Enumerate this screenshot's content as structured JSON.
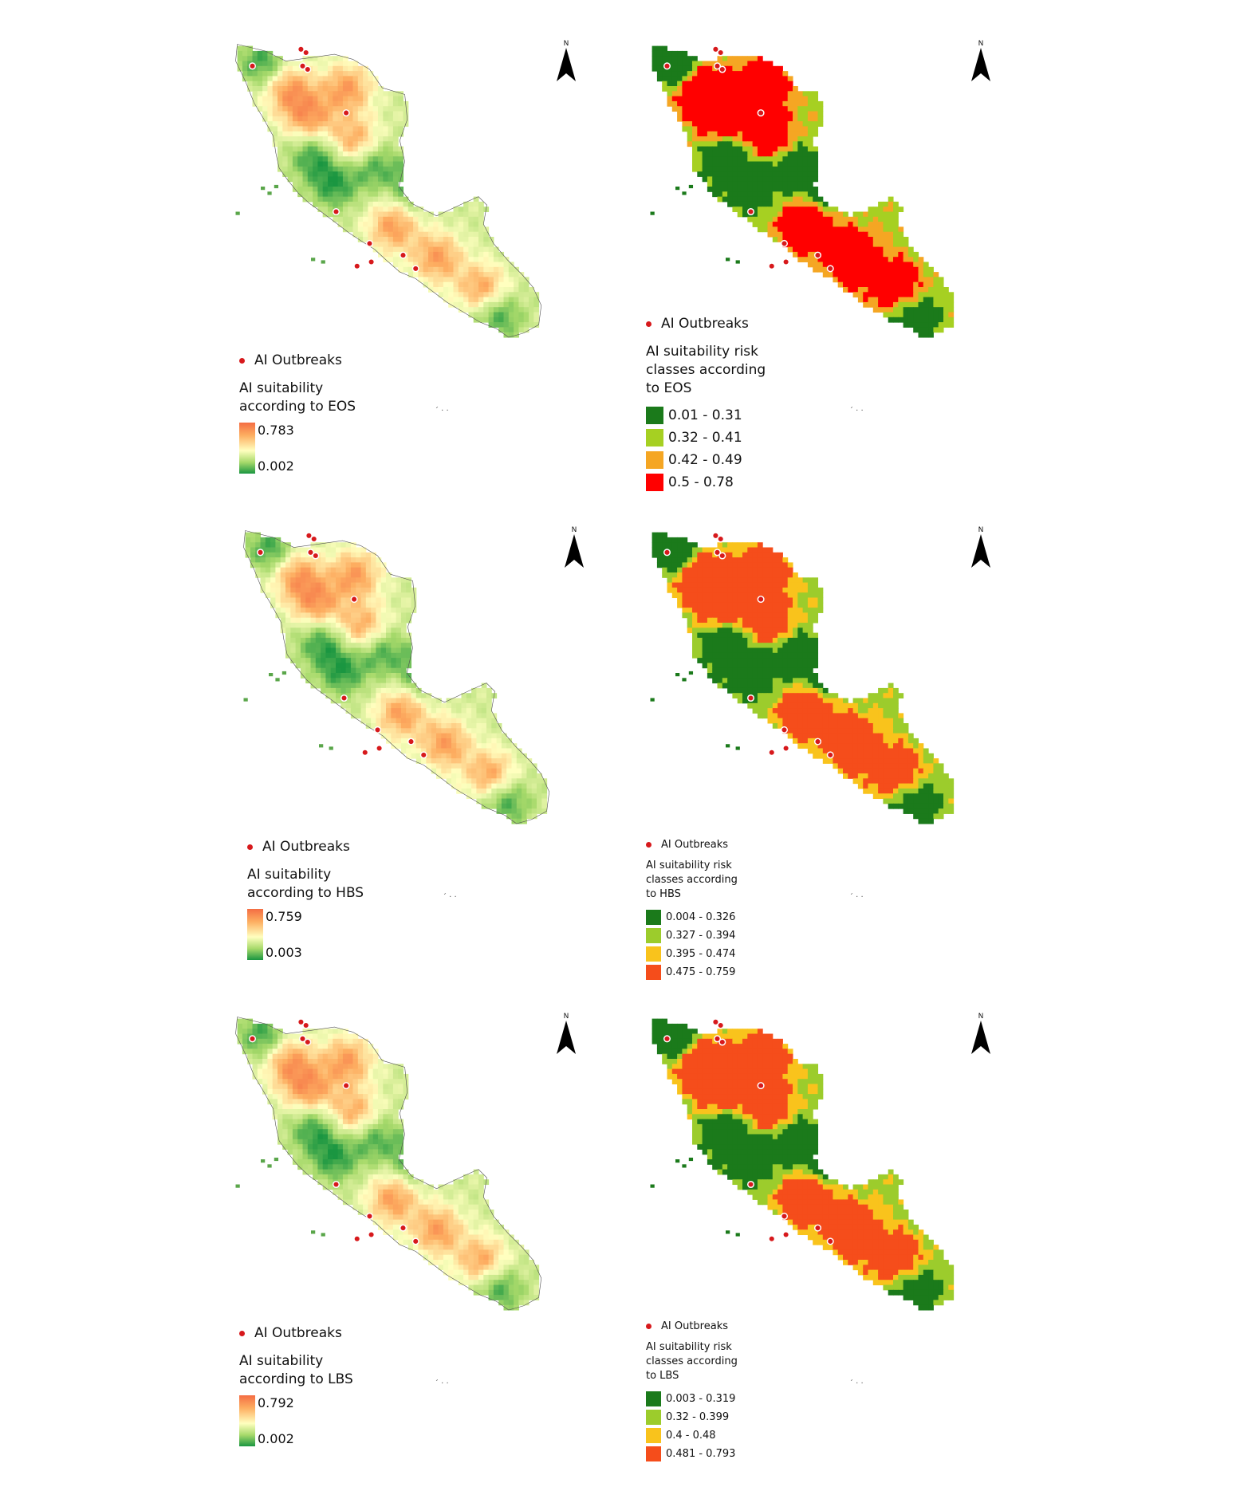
{
  "outbreaks_label": "AI Outbreaks",
  "north_label": "N",
  "palette": {
    "class_colors": [
      "#1b7a1b",
      "#a6d022",
      "#f5a623",
      "#ff0000"
    ],
    "class_colors_alt": [
      "#1b7a1b",
      "#9ccc2c",
      "#f9c31c",
      "#f54d1b"
    ],
    "continuous_ramp": [
      "#1a9641",
      "#a6d96a",
      "#ffffbf",
      "#fdae61",
      "#f46d43"
    ],
    "outbreak_color": "#d7191c"
  },
  "panels": [
    {
      "id": "eos-continuous",
      "kind": "continuous",
      "legend_title_line1": "AI suitability",
      "legend_title_line2": "according to EOS",
      "max_label": "0.783",
      "min_label": "0.002"
    },
    {
      "id": "eos-classes",
      "kind": "classes",
      "legend_title_line1": "AI suitability risk",
      "legend_title_line2": "classes according",
      "legend_title_line3": "to EOS",
      "classes": [
        "0.01 - 0.31",
        "0.32 - 0.41",
        "0.42 - 0.49",
        "0.5 - 0.78"
      ]
    },
    {
      "id": "hbs-continuous",
      "kind": "continuous",
      "legend_title_line1": "AI suitability",
      "legend_title_line2": "according to HBS",
      "max_label": "0.759",
      "min_label": "0.003"
    },
    {
      "id": "hbs-classes",
      "kind": "classes",
      "legend_title_line1": "AI suitability risk",
      "legend_title_line2": "classes according",
      "legend_title_line3": "to HBS",
      "classes": [
        "0.004 - 0.326",
        "0.327 - 0.394",
        "0.395 - 0.474",
        "0.475 - 0.759"
      ]
    },
    {
      "id": "lbs-continuous",
      "kind": "continuous",
      "legend_title_line1": "AI suitability",
      "legend_title_line2": "according to LBS",
      "max_label": "0.792",
      "min_label": "0.002"
    },
    {
      "id": "lbs-classes",
      "kind": "classes",
      "legend_title_line1": "AI suitability risk",
      "legend_title_line2": "classes according",
      "legend_title_line3": "to LBS",
      "classes": [
        "0.003 - 0.319",
        "0.32 - 0.399",
        "0.4 - 0.48",
        "0.481 - 0.793"
      ]
    }
  ]
}
